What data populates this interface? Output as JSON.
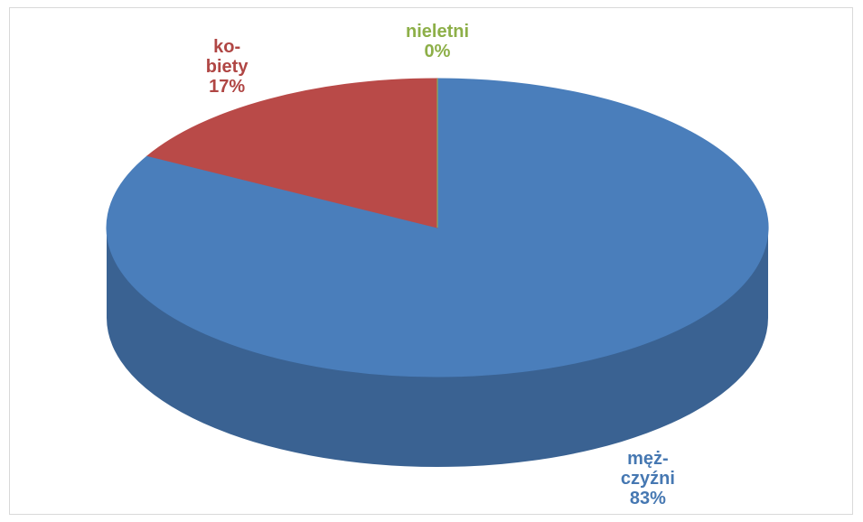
{
  "chart_data": {
    "type": "pie",
    "depth3d": true,
    "categories": [
      "męż-czyźni",
      "ko-biety",
      "nieletni"
    ],
    "values": [
      83,
      17,
      0
    ],
    "value_labels": [
      "83%",
      "17%",
      "0%"
    ],
    "colors": [
      "#4a7ebb",
      "#b94a48",
      "#94b84c"
    ]
  }
}
